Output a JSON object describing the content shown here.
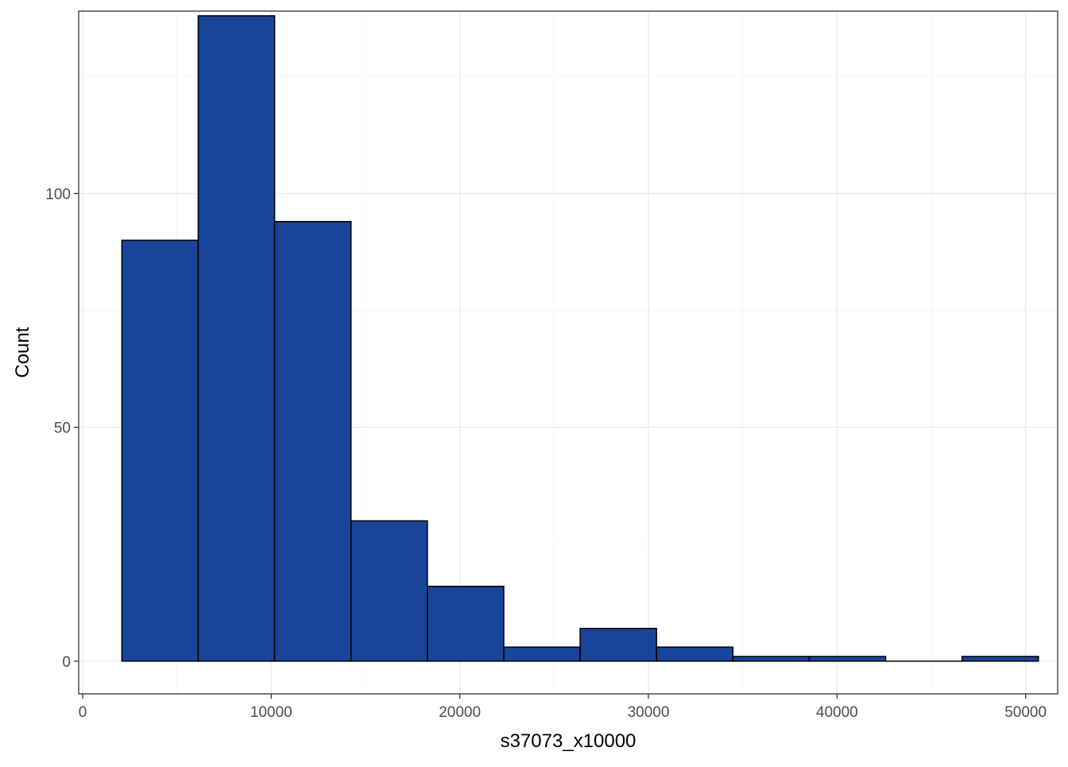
{
  "chart_data": {
    "type": "bar",
    "title": "",
    "xlabel": "s37073_x10000",
    "ylabel": "Count",
    "xlim": [
      -210,
      51700
    ],
    "ylim": [
      -7,
      139
    ],
    "x_ticks": [
      0,
      10000,
      20000,
      30000,
      40000,
      50000
    ],
    "x_tick_labels": [
      "0",
      "10000",
      "20000",
      "30000",
      "40000",
      "50000"
    ],
    "y_ticks": [
      0,
      50,
      100
    ],
    "y_tick_labels": [
      "0",
      "50",
      "100"
    ],
    "grid": true,
    "bins": [
      {
        "x0": 2080,
        "x1": 6130,
        "count": 90
      },
      {
        "x0": 6130,
        "x1": 10180,
        "count": 138
      },
      {
        "x0": 10180,
        "x1": 14230,
        "count": 94
      },
      {
        "x0": 14230,
        "x1": 18280,
        "count": 30
      },
      {
        "x0": 18280,
        "x1": 22330,
        "count": 16
      },
      {
        "x0": 22330,
        "x1": 26380,
        "count": 3
      },
      {
        "x0": 26380,
        "x1": 30430,
        "count": 7
      },
      {
        "x0": 30430,
        "x1": 34480,
        "count": 3
      },
      {
        "x0": 34480,
        "x1": 38530,
        "count": 1
      },
      {
        "x0": 38530,
        "x1": 42580,
        "count": 1
      },
      {
        "x0": 42580,
        "x1": 46630,
        "count": 0
      },
      {
        "x0": 46630,
        "x1": 50680,
        "count": 1
      }
    ],
    "colors": {
      "bar_fill": "#18449A",
      "bar_outline": "#000000",
      "grid": "#EBEBEB",
      "panel_border": "#333333"
    }
  }
}
